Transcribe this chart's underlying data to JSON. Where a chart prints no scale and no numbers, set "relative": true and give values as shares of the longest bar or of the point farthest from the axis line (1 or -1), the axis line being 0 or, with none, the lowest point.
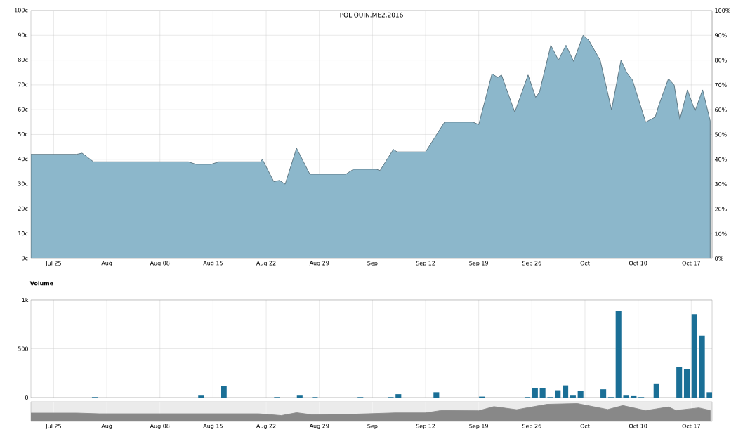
{
  "chart_data": [
    {
      "type": "area",
      "title": "POLIQUIN.ME2.2016",
      "x": [
        "2016-07-22T00:00",
        "2016-07-28T00:00",
        "2016-07-28T18:00",
        "2016-07-30T06:00",
        "2016-07-31T06:00",
        "2016-08-11T18:00",
        "2016-08-12T18:00",
        "2016-08-14T18:00",
        "2016-08-15T18:00",
        "2016-08-21T06:00",
        "2016-08-21T12:00",
        "2016-08-23T00:00",
        "2016-08-23T18:00",
        "2016-08-24T12:00",
        "2016-08-26T00:00",
        "2016-08-27T18:00",
        "2016-08-28T12:00",
        "2016-09-01T12:00",
        "2016-09-02T12:00",
        "2016-09-05T12:00",
        "2016-09-06T00:00",
        "2016-09-07T18:00",
        "2016-09-08T06:00",
        "2016-09-11T18:00",
        "2016-09-12T00:00",
        "2016-09-14T12:00",
        "2016-09-18T06:00",
        "2016-09-19T00:00",
        "2016-09-20T18:00",
        "2016-09-21T12:00",
        "2016-09-22T00:00",
        "2016-09-23T18:00",
        "2016-09-25T12:00",
        "2016-09-26T12:00",
        "2016-09-27T00:00",
        "2016-09-28T12:00",
        "2016-09-29T12:00",
        "2016-09-30T12:00",
        "2016-10-01T12:00",
        "2016-10-02T18:00",
        "2016-10-03T12:00",
        "2016-10-05T00:00",
        "2016-10-06T12:00",
        "2016-10-07T18:00",
        "2016-10-08T12:00",
        "2016-10-09T06:00",
        "2016-10-11T00:00",
        "2016-10-12T06:00",
        "2016-10-12T18:00",
        "2016-10-14T00:00",
        "2016-10-14T18:00",
        "2016-10-15T12:00",
        "2016-10-16T12:00",
        "2016-10-17T12:00",
        "2016-10-18T12:00",
        "2016-10-19T12:00"
      ],
      "series": [
        {
          "color": "#8cb7cb",
          "values": [
            42,
            42,
            42.5,
            39,
            39,
            39,
            38,
            38,
            39,
            39,
            40,
            31,
            31.5,
            30,
            44.5,
            34,
            34,
            34,
            36,
            36,
            35.5,
            44,
            43,
            43,
            43,
            55,
            55,
            54,
            74.5,
            73,
            74,
            59,
            74,
            65,
            67,
            86,
            80,
            86,
            79.5,
            90,
            88,
            80,
            60,
            80,
            75,
            72,
            55,
            57,
            62,
            72.5,
            70,
            56,
            68,
            59.5,
            68,
            55.5
          ]
        }
      ],
      "xlim": [
        "2016-07-22T00:00",
        "2016-10-19T18:00"
      ],
      "xticks": [
        {
          "value": "2016-07-25",
          "label": "Jul 25"
        },
        {
          "value": "2016-08-01",
          "label": "Aug"
        },
        {
          "value": "2016-08-08",
          "label": "Aug 08"
        },
        {
          "value": "2016-08-15",
          "label": "Aug 15"
        },
        {
          "value": "2016-08-22",
          "label": "Aug 22"
        },
        {
          "value": "2016-08-29",
          "label": "Aug 29"
        },
        {
          "value": "2016-09-05",
          "label": "Sep"
        },
        {
          "value": "2016-09-12",
          "label": "Sep 12"
        },
        {
          "value": "2016-09-19",
          "label": "Sep 19"
        },
        {
          "value": "2016-09-26",
          "label": "Sep 26"
        },
        {
          "value": "2016-10-03",
          "label": "Oct"
        },
        {
          "value": "2016-10-10",
          "label": "Oct 10"
        },
        {
          "value": "2016-10-17",
          "label": "Oct 17"
        }
      ],
      "ylim": [
        0,
        100
      ],
      "yticks": [
        {
          "value": 0,
          "label": "0¢"
        },
        {
          "value": 10,
          "label": "10¢"
        },
        {
          "value": 20,
          "label": "20¢"
        },
        {
          "value": 30,
          "label": "30¢"
        },
        {
          "value": 40,
          "label": "40¢"
        },
        {
          "value": 50,
          "label": "50¢"
        },
        {
          "value": 60,
          "label": "60¢"
        },
        {
          "value": 70,
          "label": "70¢"
        },
        {
          "value": 80,
          "label": "80¢"
        },
        {
          "value": 90,
          "label": "90¢"
        },
        {
          "value": 100,
          "label": "100¢"
        }
      ],
      "y2lim": [
        0,
        100
      ],
      "y2ticks": [
        {
          "value": 0,
          "label": "0%"
        },
        {
          "value": 10,
          "label": "10%"
        },
        {
          "value": 20,
          "label": "20%"
        },
        {
          "value": 30,
          "label": "30%"
        },
        {
          "value": 40,
          "label": "40%"
        },
        {
          "value": 50,
          "label": "50%"
        },
        {
          "value": 60,
          "label": "60%"
        },
        {
          "value": 70,
          "label": "70%"
        },
        {
          "value": 80,
          "label": "80%"
        },
        {
          "value": 90,
          "label": "90%"
        },
        {
          "value": 100,
          "label": "100%"
        }
      ],
      "grid": true
    },
    {
      "type": "bar",
      "title": "Volume",
      "x": [
        "2016-07-30T10:00",
        "2016-08-13T10:00",
        "2016-08-16T10:00",
        "2016-08-23T10:00",
        "2016-08-26T10:00",
        "2016-08-28T10:00",
        "2016-09-03T10:00",
        "2016-09-07T10:00",
        "2016-09-08T10:00",
        "2016-09-13T10:00",
        "2016-09-19T10:00",
        "2016-09-25T10:00",
        "2016-09-26T10:00",
        "2016-09-27T10:00",
        "2016-09-28T10:00",
        "2016-09-29T10:00",
        "2016-09-30T10:00",
        "2016-10-01T10:00",
        "2016-10-02T10:00",
        "2016-10-05T10:00",
        "2016-10-06T10:00",
        "2016-10-07T10:00",
        "2016-10-08T10:00",
        "2016-10-09T10:00",
        "2016-10-10T10:00",
        "2016-10-12T10:00",
        "2016-10-15T10:00",
        "2016-10-16T10:00",
        "2016-10-17T10:00",
        "2016-10-18T10:00",
        "2016-10-19T10:00"
      ],
      "values": [
        5,
        20,
        120,
        5,
        20,
        5,
        5,
        5,
        35,
        55,
        10,
        5,
        100,
        95,
        5,
        75,
        125,
        20,
        65,
        85,
        5,
        885,
        20,
        15,
        5,
        145,
        315,
        290,
        855,
        635,
        55
      ],
      "color": "#1a6f96",
      "xlim": [
        "2016-07-22T00:00",
        "2016-10-19T18:00"
      ],
      "xticks": [
        {
          "value": "2016-07-25",
          "label": null
        },
        {
          "value": "2016-08-01",
          "label": null
        },
        {
          "value": "2016-08-08",
          "label": null
        },
        {
          "value": "2016-08-15",
          "label": null
        },
        {
          "value": "2016-08-22",
          "label": null
        },
        {
          "value": "2016-08-29",
          "label": null
        },
        {
          "value": "2016-09-05",
          "label": null
        },
        {
          "value": "2016-09-12",
          "label": null
        },
        {
          "value": "2016-09-19",
          "label": null
        },
        {
          "value": "2016-09-26",
          "label": null
        },
        {
          "value": "2016-10-03",
          "label": null
        },
        {
          "value": "2016-10-10",
          "label": null
        },
        {
          "value": "2016-10-17",
          "label": null
        }
      ],
      "ylim": [
        0,
        1000
      ],
      "yticks": [
        0,
        500,
        {
          "value": 1000,
          "label": "1k"
        }
      ],
      "grid": true,
      "tick_labels": "y"
    },
    {
      "type": "area",
      "relative": true,
      "x": [
        "2016-07-22T00:00",
        "2016-07-28T00:00",
        "2016-07-31T00:00",
        "2016-08-21T00:00",
        "2016-08-24T00:00",
        "2016-08-26T00:00",
        "2016-08-28T00:00",
        "2016-09-02T00:00",
        "2016-09-08T00:00",
        "2016-09-12T00:00",
        "2016-09-14T00:00",
        "2016-09-19T00:00",
        "2016-09-21T00:00",
        "2016-09-24T00:00",
        "2016-09-28T00:00",
        "2016-10-02T00:00",
        "2016-10-06T00:00",
        "2016-10-08T00:00",
        "2016-10-11T00:00",
        "2016-10-14T00:00",
        "2016-10-15T00:00",
        "2016-10-18T00:00",
        "2016-10-19T12:00"
      ],
      "values": [
        0.47,
        0.47,
        0.43,
        0.43,
        0.33,
        0.49,
        0.38,
        0.4,
        0.48,
        0.48,
        0.61,
        0.6,
        0.83,
        0.66,
        0.96,
        1,
        0.67,
        0.89,
        0.61,
        0.81,
        0.62,
        0.76,
        0.62
      ],
      "color": "#888888",
      "xlim": [
        "2016-07-22T00:00",
        "2016-10-19T18:00"
      ],
      "xticks": [
        {
          "value": "2016-07-25",
          "label": "Jul 25"
        },
        {
          "value": "2016-08-01",
          "label": "Aug"
        },
        {
          "value": "2016-08-08",
          "label": "Aug 08"
        },
        {
          "value": "2016-08-15",
          "label": "Aug 15"
        },
        {
          "value": "2016-08-22",
          "label": "Aug 22"
        },
        {
          "value": "2016-08-29",
          "label": "Aug 29"
        },
        {
          "value": "2016-09-05",
          "label": "Sep"
        },
        {
          "value": "2016-09-12",
          "label": "Sep 12"
        },
        {
          "value": "2016-09-19",
          "label": "Sep 19"
        },
        {
          "value": "2016-09-26",
          "label": "Sep 26"
        },
        {
          "value": "2016-10-03",
          "label": "Oct"
        },
        {
          "value": "2016-10-10",
          "label": "Oct 10"
        },
        {
          "value": "2016-10-17",
          "label": "Oct 17"
        }
      ],
      "grid": "x",
      "tick_labels": "x"
    }
  ]
}
